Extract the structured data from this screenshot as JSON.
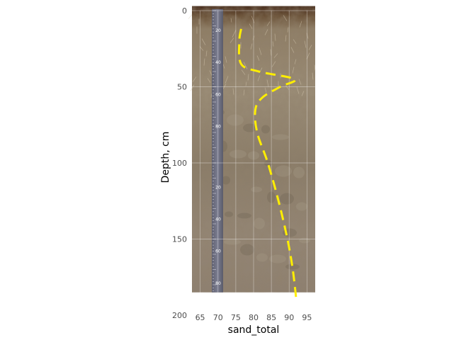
{
  "chart_data": {
    "type": "line",
    "xlabel": "sand_total",
    "ylabel": "Depth, cm",
    "xlim": [
      62.5,
      97.5
    ],
    "ylim": [
      200,
      0
    ],
    "y_reversed": true,
    "x_ticks": [
      "65",
      "70",
      "75",
      "80",
      "85",
      "90",
      "95"
    ],
    "y_ticks": [
      "0",
      "50",
      "100",
      "150",
      "200"
    ],
    "grid": true,
    "legend": "none",
    "background": "soil profile photograph",
    "ruler_labels": [
      "20",
      "40",
      "60",
      "80",
      "20",
      "40",
      "60",
      "80"
    ],
    "series": [
      {
        "x": [
          76.5,
          76.0,
          76.5,
          81.5,
          91.5,
          87.5,
          82.5,
          80.5,
          81.0,
          84.0,
          87.0,
          89.5,
          91.0,
          92.0
        ],
        "y": [
          12,
          20,
          35,
          40,
          45,
          50,
          57,
          65,
          80,
          100,
          125,
          150,
          170,
          190
        ],
        "color": "#ffee00",
        "style": "dashed"
      }
    ]
  }
}
